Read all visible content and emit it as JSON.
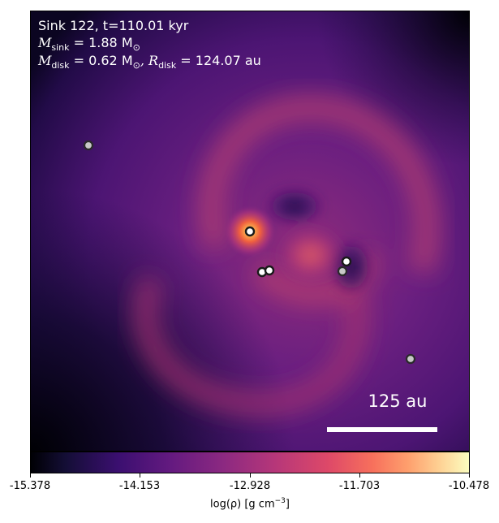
{
  "annotation": {
    "line1": "Sink 122, t=110.01 kyr",
    "msink_symbol": "M",
    "msink_sub": "sink",
    "msink_value": " = 1.88 M",
    "msink_sun": "⊙",
    "mdisk_symbol": "M",
    "mdisk_sub": "disk",
    "mdisk_value": " = 0.62 M",
    "mdisk_sun": "⊙",
    "rdisk_symbol": ", R",
    "rdisk_sub": "disk",
    "rdisk_value": " = 124.07 au"
  },
  "scalebar": {
    "label": "125 au"
  },
  "colorbar": {
    "ticks": [
      "-15.378",
      "-14.153",
      "-12.928",
      "-11.703",
      "-10.478"
    ],
    "label_main": "log(ρ) [g cm",
    "label_sup": "−3",
    "label_end": "]",
    "colormap": "magma"
  },
  "sinks": [
    {
      "kind": "bright"
    },
    {
      "kind": "bright"
    },
    {
      "kind": "bright"
    },
    {
      "kind": "bright"
    },
    {
      "kind": "dim"
    },
    {
      "kind": "dim"
    },
    {
      "kind": "dim"
    }
  ]
}
